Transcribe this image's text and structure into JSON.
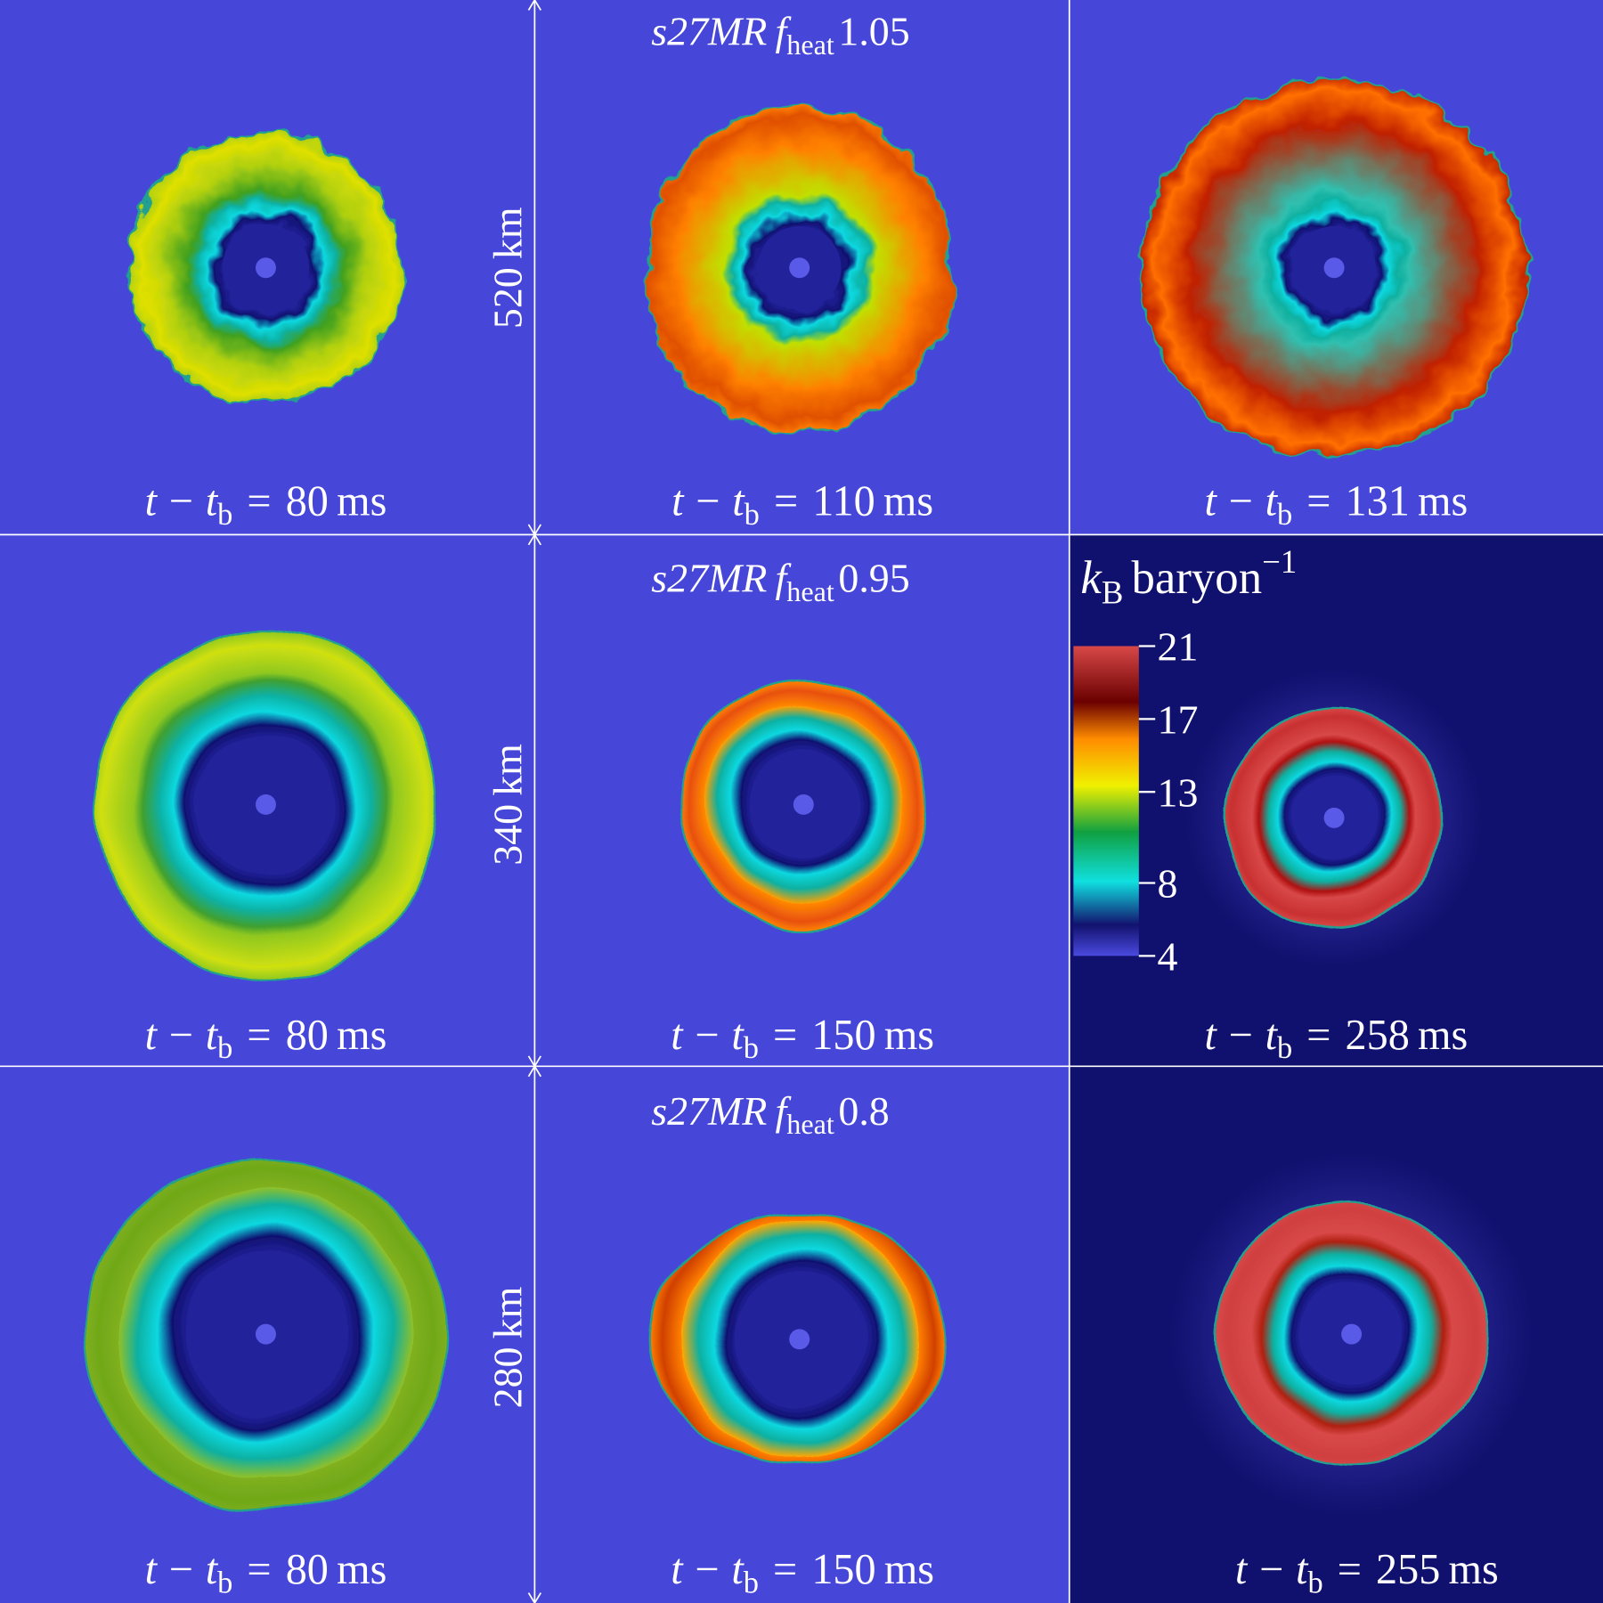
{
  "figure": {
    "rows": [
      {
        "model": "s27MR",
        "f_heat": 1.05,
        "scale": 520,
        "times": [
          80,
          110,
          131
        ]
      },
      {
        "model": "s27MR",
        "f_heat": 0.95,
        "scale": 340,
        "times": [
          80,
          150,
          258
        ]
      },
      {
        "model": "s27MR",
        "f_heat": 0.8,
        "scale": 280,
        "times": [
          80,
          150,
          255
        ]
      }
    ],
    "f_symbol": "f",
    "f_subscript": "heat",
    "scale_unit": "km",
    "time_label": {
      "t": "t",
      "minus": "−",
      "b": "b",
      "eq": "=",
      "unit": "ms"
    },
    "colorbar": {
      "k": "k",
      "k_sub": "B",
      "unit": "baryon",
      "exponent": "−1",
      "lim": [
        4,
        21
      ],
      "ticks": [
        21,
        17,
        13,
        8,
        4
      ]
    }
  }
}
